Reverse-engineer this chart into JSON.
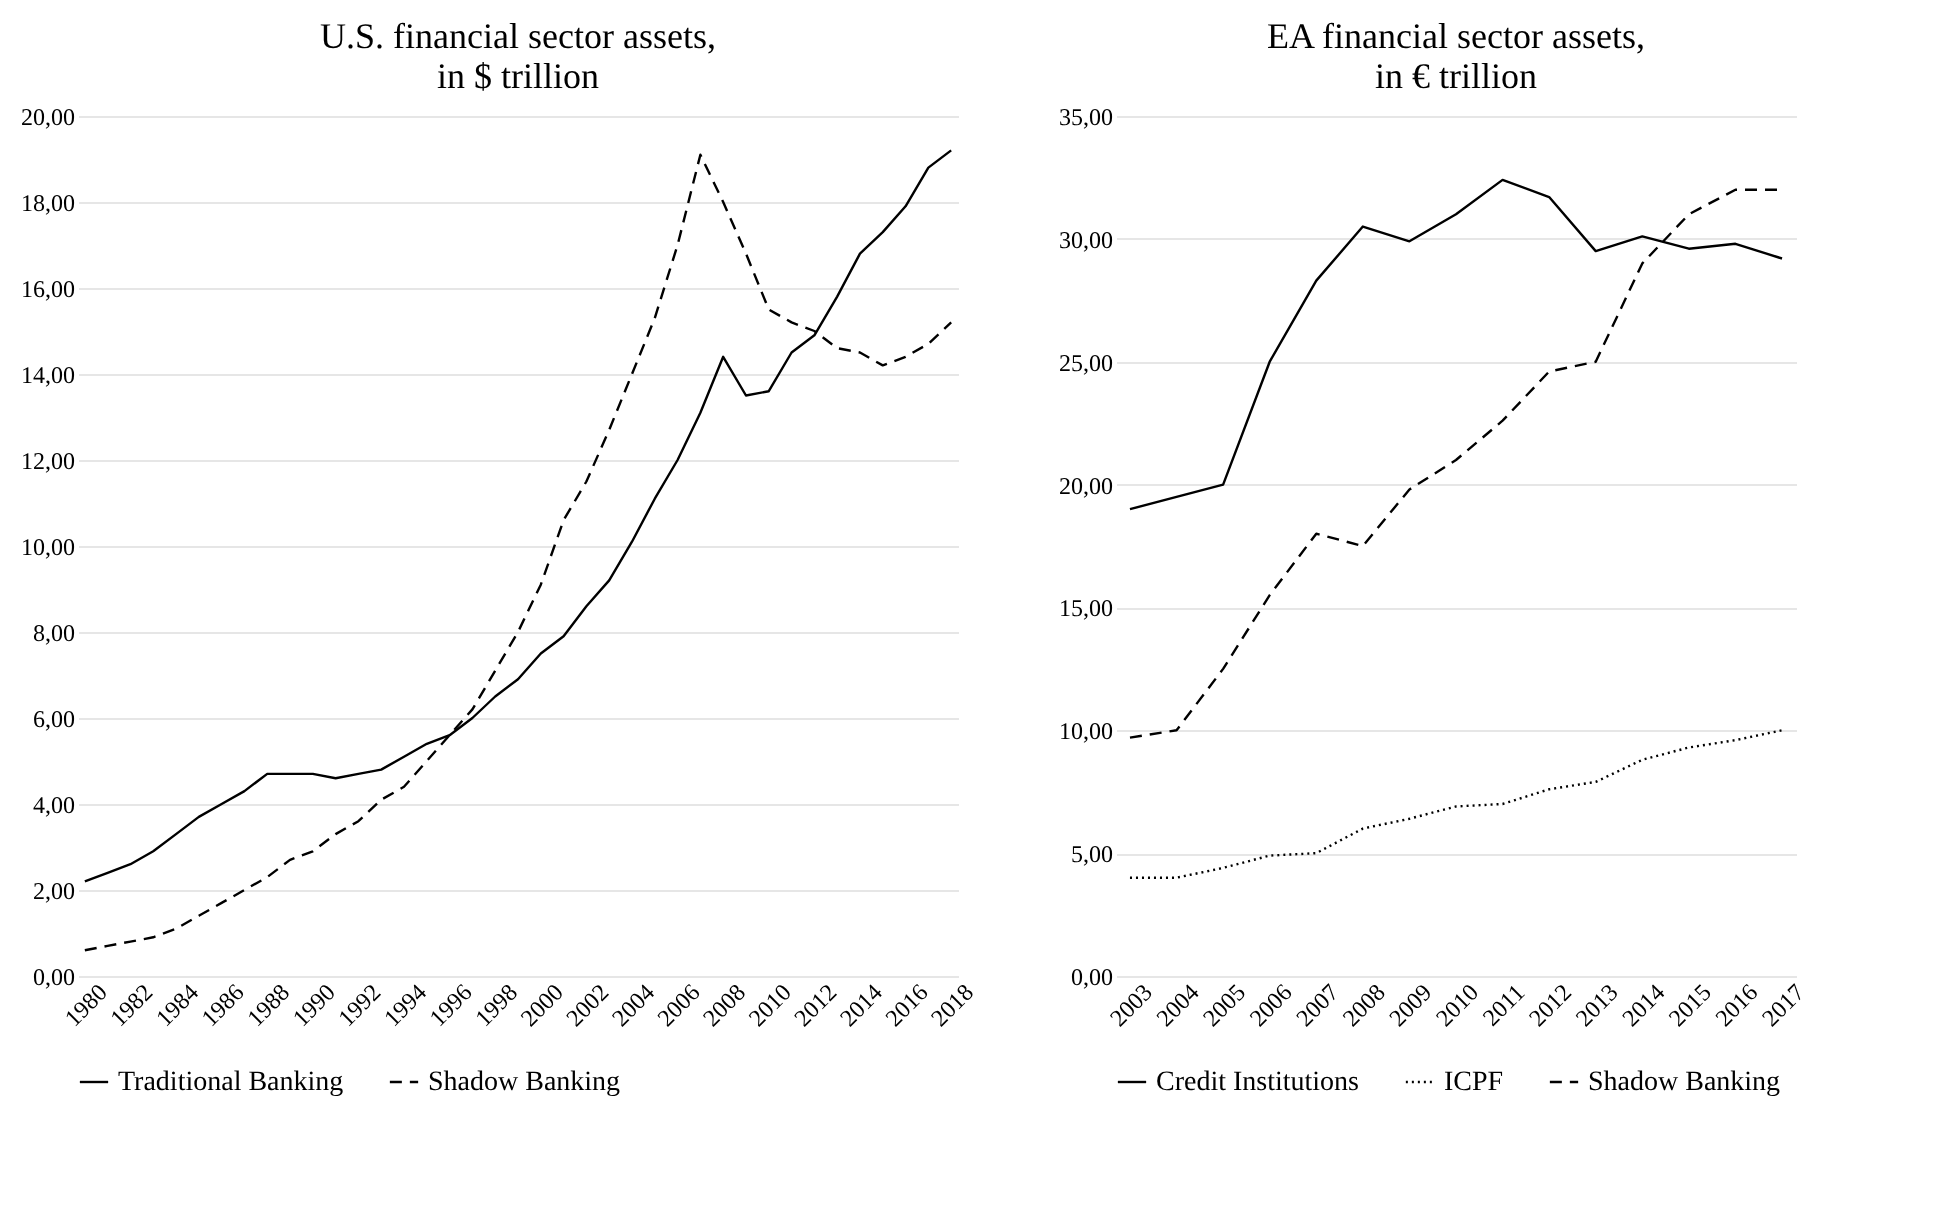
{
  "chart_data": [
    {
      "type": "line",
      "title": "U.S. financial sector assets,\nin $ trillion",
      "categories": [
        "1980",
        null,
        "1982",
        null,
        "1984",
        null,
        "1986",
        null,
        "1988",
        null,
        "1990",
        null,
        "1992",
        null,
        "1994",
        null,
        "1996",
        null,
        "1998",
        null,
        "2000",
        null,
        "2002",
        null,
        "2004",
        null,
        "2006",
        null,
        "2008",
        null,
        "2010",
        null,
        "2012",
        null,
        "2014",
        null,
        "2016",
        null,
        "2018"
      ],
      "series": [
        {
          "name": "Traditional Banking",
          "color": "#000000",
          "line_style": "solid",
          "values": [
            2.2,
            2.4,
            2.6,
            2.9,
            3.3,
            3.7,
            4.0,
            4.3,
            4.7,
            4.7,
            4.7,
            4.6,
            4.7,
            4.8,
            5.1,
            5.4,
            5.6,
            6.0,
            6.5,
            6.9,
            7.5,
            7.9,
            8.6,
            9.2,
            10.1,
            11.1,
            12.0,
            13.1,
            14.4,
            13.5,
            13.6,
            14.5,
            14.9,
            15.8,
            16.8,
            17.3,
            17.9,
            18.8,
            19.2
          ]
        },
        {
          "name": "Shadow Banking",
          "color": "#000000",
          "line_style": "dashed",
          "values": [
            0.6,
            0.7,
            0.8,
            0.9,
            1.1,
            1.4,
            1.7,
            2.0,
            2.3,
            2.7,
            2.9,
            3.3,
            3.6,
            4.1,
            4.4,
            5.0,
            5.6,
            6.2,
            7.1,
            8.0,
            9.1,
            10.6,
            11.5,
            12.7,
            14.0,
            15.3,
            17.0,
            19.1,
            18.0,
            16.8,
            15.5,
            15.2,
            15.0,
            14.6,
            14.5,
            14.2,
            14.4,
            14.7,
            15.2
          ]
        }
      ],
      "ylim": [
        0,
        20
      ],
      "yticks": [
        {
          "value": 0,
          "label": "0,00"
        },
        {
          "value": 2,
          "label": "2,00"
        },
        {
          "value": 4,
          "label": "4,00"
        },
        {
          "value": 6,
          "label": "6,00"
        },
        {
          "value": 8,
          "label": "8,00"
        },
        {
          "value": 10,
          "label": "10,00"
        },
        {
          "value": 12,
          "label": "12,00"
        },
        {
          "value": 14,
          "label": "14,00"
        },
        {
          "value": 16,
          "label": "16,00"
        },
        {
          "value": 18,
          "label": "18,00"
        },
        {
          "value": 20,
          "label": "20,00"
        }
      ],
      "grid": "y",
      "legend": "bottom"
    },
    {
      "type": "line",
      "title": "EA financial sector assets,\nin € trillion",
      "categories": [
        "2003",
        "2004",
        "2005",
        "2006",
        "2007",
        "2008",
        "2009",
        "2010",
        "2011",
        "2012",
        "2013",
        "2014",
        "2015",
        "2016",
        "2017"
      ],
      "series": [
        {
          "name": "Credit Institutions",
          "color": "#000000",
          "line_style": "solid",
          "values": [
            19.0,
            19.5,
            20.0,
            25.0,
            28.3,
            30.5,
            29.9,
            31.0,
            32.4,
            31.7,
            29.5,
            30.1,
            29.6,
            29.8,
            29.2
          ]
        },
        {
          "name": "ICPF",
          "color": "#000000",
          "line_style": "dotted",
          "values": [
            4.0,
            4.0,
            4.4,
            4.9,
            5.0,
            6.0,
            6.4,
            6.9,
            7.0,
            7.6,
            7.9,
            8.8,
            9.3,
            9.6,
            10.0
          ]
        },
        {
          "name": "Shadow Banking",
          "color": "#000000",
          "line_style": "dashed",
          "values": [
            9.7,
            10.0,
            12.5,
            15.5,
            18.0,
            17.5,
            19.8,
            21.0,
            22.6,
            24.6,
            25.0,
            29.0,
            31.0,
            32.0,
            32.0
          ]
        }
      ],
      "ylim": [
        0,
        35
      ],
      "yticks": [
        {
          "value": 0,
          "label": "0,00"
        },
        {
          "value": 5,
          "label": "5,00"
        },
        {
          "value": 10,
          "label": "10,00"
        },
        {
          "value": 15,
          "label": "15,00"
        },
        {
          "value": 20,
          "label": "20,00"
        },
        {
          "value": 25,
          "label": "25,00"
        },
        {
          "value": 30,
          "label": "30,00"
        },
        {
          "value": 35,
          "label": "35,00"
        }
      ],
      "grid": "y",
      "legend": "bottom"
    }
  ]
}
